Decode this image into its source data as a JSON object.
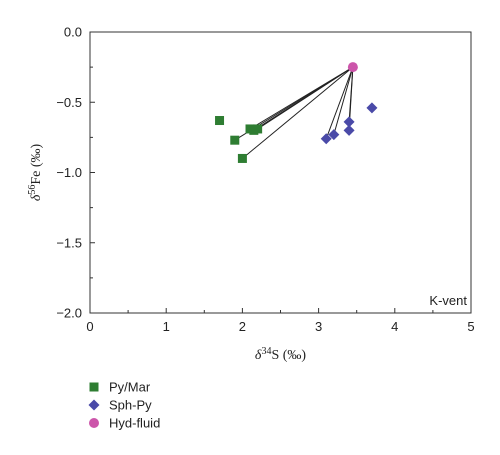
{
  "chart_data": {
    "type": "scatter",
    "title": "",
    "panel_label": "K-vent",
    "xlabel": {
      "prefix": "δ",
      "sup": "34",
      "main": "S (‰)"
    },
    "ylabel": {
      "prefix": "δ",
      "sup": "56",
      "main": "Fe (‰)"
    },
    "xlim": [
      0,
      5
    ],
    "ylim": [
      -2.0,
      0.0
    ],
    "x_ticks": [
      0,
      1,
      2,
      3,
      4,
      5
    ],
    "x_tick_labels": [
      "0",
      "1",
      "2",
      "3",
      "4",
      "5"
    ],
    "y_ticks": [
      0.0,
      -0.5,
      -1.0,
      -1.5,
      -2.0
    ],
    "y_tick_labels": [
      "0.0",
      "−0.5",
      "−1.0",
      "−1.5",
      "−2.0"
    ],
    "grid": false,
    "legend_position": "bottom-left, below plot",
    "tie_lines_to": "Hyd-fluid",
    "series": [
      {
        "name": "Py/Mar",
        "marker": "square",
        "color": "#2e7d32",
        "points": [
          {
            "x": 1.7,
            "y": -0.63
          },
          {
            "x": 1.9,
            "y": -0.77
          },
          {
            "x": 2.0,
            "y": -0.9
          },
          {
            "x": 2.1,
            "y": -0.69
          },
          {
            "x": 2.15,
            "y": -0.7
          },
          {
            "x": 2.2,
            "y": -0.69
          }
        ],
        "tie_lines": [
          false,
          true,
          true,
          true,
          true,
          true
        ]
      },
      {
        "name": "Sph-Py",
        "marker": "diamond",
        "color": "#4a4aa8",
        "points": [
          {
            "x": 3.1,
            "y": -0.76
          },
          {
            "x": 3.2,
            "y": -0.73
          },
          {
            "x": 3.4,
            "y": -0.64
          },
          {
            "x": 3.4,
            "y": -0.7
          },
          {
            "x": 3.7,
            "y": -0.54
          }
        ],
        "tie_lines": [
          true,
          true,
          true,
          true,
          false
        ]
      },
      {
        "name": "Hyd-fluid",
        "marker": "circle",
        "color": "#cc55aa",
        "points": [
          {
            "x": 3.45,
            "y": -0.25
          }
        ]
      }
    ]
  }
}
